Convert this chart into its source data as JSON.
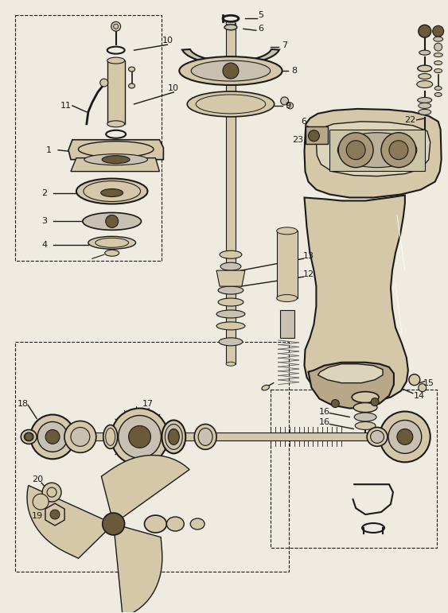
{
  "bg_color": "#f0ebe0",
  "lc": "#1a1a1a",
  "fc_light": "#d4c8a8",
  "fc_mid": "#b8a888",
  "fc_dark": "#6a5a3a",
  "fc_gray": "#c8c0b0",
  "figsize": [
    5.63,
    7.71
  ],
  "dpi": 100
}
